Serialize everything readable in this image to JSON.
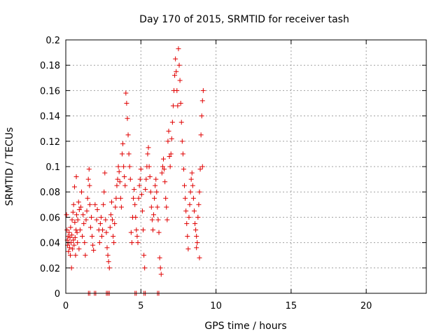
{
  "chart_data": {
    "type": "scatter",
    "title": "Day 170 of 2015, SRMTID for receiver tash",
    "xlabel": "GPS time / hours",
    "ylabel": "SRMTID / TECUs",
    "xlim": [
      0,
      24
    ],
    "ylim": [
      0,
      0.2
    ],
    "xticks": [
      0,
      5,
      10,
      15,
      20
    ],
    "xtick_labels": [
      "0",
      "5",
      "10",
      "15",
      "20"
    ],
    "yticks": [
      0,
      0.02,
      0.04,
      0.06,
      0.08,
      0.1,
      0.12,
      0.14,
      0.16,
      0.18,
      0.2
    ],
    "ytick_labels": [
      "0",
      "0.02",
      "0.04",
      "0.06",
      "0.08",
      "0.1",
      "0.12",
      "0.14",
      "0.16",
      "0.18",
      "0.2"
    ],
    "grid": true,
    "marker": "plus",
    "point_color": "#e00000",
    "series": [
      {
        "points": [
          [
            0.05,
            0.062
          ],
          [
            0.08,
            0.05
          ],
          [
            0.1,
            0.042
          ],
          [
            0.12,
            0.038
          ],
          [
            0.15,
            0.045
          ],
          [
            0.18,
            0.033
          ],
          [
            0.2,
            0.04
          ],
          [
            0.22,
            0.048
          ],
          [
            0.25,
            0.036
          ],
          [
            0.28,
            0.044
          ],
          [
            0.3,
            0.03
          ],
          [
            0.32,
            0.052
          ],
          [
            0.35,
            0.04
          ],
          [
            0.38,
            0.02
          ],
          [
            0.4,
            0.046
          ],
          [
            0.42,
            0.058
          ],
          [
            0.45,
            0.035
          ],
          [
            0.48,
            0.064
          ],
          [
            0.5,
            0.042
          ],
          [
            0.52,
            0.07
          ],
          [
            0.55,
            0.038
          ],
          [
            0.58,
            0.084
          ],
          [
            0.6,
            0.056
          ],
          [
            0.62,
            0.044
          ],
          [
            0.65,
            0.03
          ],
          [
            0.68,
            0.05
          ],
          [
            0.7,
            0.092
          ],
          [
            0.72,
            0.062
          ],
          [
            0.75,
            0.048
          ],
          [
            0.78,
            0.04
          ],
          [
            0.8,
            0.058
          ],
          [
            0.85,
            0.072
          ],
          [
            0.88,
            0.035
          ],
          [
            0.9,
            0.066
          ],
          [
            0.95,
            0.05
          ],
          [
            1.0,
            0.068
          ],
          [
            1.05,
            0.08
          ],
          [
            1.1,
            0.045
          ],
          [
            1.15,
            0.062
          ],
          [
            1.2,
            0.055
          ],
          [
            1.25,
            0.04
          ],
          [
            1.3,
            0.03
          ],
          [
            1.35,
            0.058
          ],
          [
            1.4,
            0.065
          ],
          [
            1.45,
            0.075
          ],
          [
            1.5,
            0.09
          ],
          [
            1.55,
            0.098
          ],
          [
            1.58,
            0.085
          ],
          [
            1.6,
            0.07
          ],
          [
            1.65,
            0.052
          ],
          [
            1.7,
            0.06
          ],
          [
            1.75,
            0.045
          ],
          [
            1.8,
            0.038
          ],
          [
            1.85,
            0.034
          ],
          [
            1.95,
            0.07
          ],
          [
            2.05,
            0.058
          ],
          [
            2.1,
            0.066
          ],
          [
            2.2,
            0.05
          ],
          [
            2.25,
            0.04
          ],
          [
            2.3,
            0.055
          ],
          [
            2.35,
            0.06
          ],
          [
            2.4,
            0.045
          ],
          [
            2.45,
            0.05
          ],
          [
            2.5,
            0.07
          ],
          [
            2.55,
            0.08
          ],
          [
            2.6,
            0.095
          ],
          [
            2.65,
            0.058
          ],
          [
            2.7,
            0.048
          ],
          [
            2.75,
            0.036
          ],
          [
            2.8,
            0.03
          ],
          [
            2.85,
            0.025
          ],
          [
            2.9,
            0.02
          ],
          [
            2.95,
            0.052
          ],
          [
            3.0,
            0.062
          ],
          [
            3.05,
            0.072
          ],
          [
            3.1,
            0.058
          ],
          [
            3.15,
            0.045
          ],
          [
            3.2,
            0.04
          ],
          [
            3.25,
            0.055
          ],
          [
            3.3,
            0.068
          ],
          [
            3.35,
            0.075
          ],
          [
            3.4,
            0.085
          ],
          [
            3.45,
            0.09
          ],
          [
            3.5,
            0.1
          ],
          [
            3.55,
            0.096
          ],
          [
            3.6,
            0.088
          ],
          [
            3.65,
            0.075
          ],
          [
            3.7,
            0.068
          ],
          [
            3.75,
            0.11
          ],
          [
            3.8,
            0.118
          ],
          [
            3.85,
            0.1
          ],
          [
            3.9,
            0.092
          ],
          [
            3.95,
            0.085
          ],
          [
            4.0,
            0.158
          ],
          [
            4.05,
            0.15
          ],
          [
            4.1,
            0.138
          ],
          [
            4.15,
            0.125
          ],
          [
            4.2,
            0.11
          ],
          [
            4.25,
            0.1
          ],
          [
            4.3,
            0.09
          ],
          [
            4.35,
            0.048
          ],
          [
            4.4,
            0.04
          ],
          [
            4.45,
            0.06
          ],
          [
            4.5,
            0.075
          ],
          [
            4.55,
            0.082
          ],
          [
            4.6,
            0.07
          ],
          [
            4.65,
            0.06
          ],
          [
            4.7,
            0.05
          ],
          [
            4.75,
            0.045
          ],
          [
            4.8,
            0.04
          ],
          [
            4.85,
            0.075
          ],
          [
            4.9,
            0.085
          ],
          [
            4.95,
            0.09
          ],
          [
            5.0,
            0.098
          ],
          [
            5.05,
            0.078
          ],
          [
            5.1,
            0.065
          ],
          [
            5.15,
            0.05
          ],
          [
            5.2,
            0.03
          ],
          [
            5.25,
            0.02
          ],
          [
            5.3,
            0.082
          ],
          [
            5.35,
            0.09
          ],
          [
            5.4,
            0.1
          ],
          [
            5.45,
            0.11
          ],
          [
            5.5,
            0.115
          ],
          [
            5.55,
            0.1
          ],
          [
            5.6,
            0.092
          ],
          [
            5.65,
            0.08
          ],
          [
            5.7,
            0.068
          ],
          [
            5.75,
            0.058
          ],
          [
            5.8,
            0.05
          ],
          [
            5.85,
            0.062
          ],
          [
            5.9,
            0.075
          ],
          [
            5.95,
            0.085
          ],
          [
            6.0,
            0.09
          ],
          [
            6.05,
            0.08
          ],
          [
            6.1,
            0.068
          ],
          [
            6.15,
            0.058
          ],
          [
            6.2,
            0.048
          ],
          [
            6.25,
            0.028
          ],
          [
            6.3,
            0.02
          ],
          [
            6.35,
            0.015
          ],
          [
            6.4,
            0.095
          ],
          [
            6.45,
            0.1
          ],
          [
            6.5,
            0.106
          ],
          [
            6.55,
            0.098
          ],
          [
            6.6,
            0.088
          ],
          [
            6.65,
            0.075
          ],
          [
            6.7,
            0.068
          ],
          [
            6.75,
            0.058
          ],
          [
            6.8,
            0.12
          ],
          [
            6.85,
            0.128
          ],
          [
            6.9,
            0.108
          ],
          [
            6.95,
            0.1
          ],
          [
            7.0,
            0.11
          ],
          [
            7.05,
            0.122
          ],
          [
            7.1,
            0.135
          ],
          [
            7.15,
            0.148
          ],
          [
            7.2,
            0.16
          ],
          [
            7.25,
            0.172
          ],
          [
            7.3,
            0.185
          ],
          [
            7.35,
            0.175
          ],
          [
            7.4,
            0.16
          ],
          [
            7.45,
            0.148
          ],
          [
            7.5,
            0.193
          ],
          [
            7.55,
            0.18
          ],
          [
            7.6,
            0.168
          ],
          [
            7.65,
            0.15
          ],
          [
            7.7,
            0.135
          ],
          [
            7.75,
            0.12
          ],
          [
            7.8,
            0.11
          ],
          [
            7.85,
            0.098
          ],
          [
            7.9,
            0.085
          ],
          [
            7.95,
            0.075
          ],
          [
            8.0,
            0.065
          ],
          [
            8.05,
            0.055
          ],
          [
            8.1,
            0.045
          ],
          [
            8.15,
            0.035
          ],
          [
            8.2,
            0.06
          ],
          [
            8.25,
            0.07
          ],
          [
            8.3,
            0.08
          ],
          [
            8.35,
            0.09
          ],
          [
            8.4,
            0.095
          ],
          [
            8.45,
            0.085
          ],
          [
            8.5,
            0.075
          ],
          [
            8.55,
            0.065
          ],
          [
            8.6,
            0.055
          ],
          [
            8.65,
            0.05
          ],
          [
            8.7,
            0.045
          ],
          [
            8.75,
            0.04
          ],
          [
            8.8,
            0.06
          ],
          [
            8.85,
            0.07
          ],
          [
            8.9,
            0.08
          ],
          [
            8.95,
            0.098
          ],
          [
            9.0,
            0.125
          ],
          [
            9.05,
            0.14
          ],
          [
            9.1,
            0.152
          ],
          [
            9.15,
            0.16
          ],
          [
            9.1,
            0.1
          ],
          [
            8.9,
            0.028
          ],
          [
            8.7,
            0.036
          ]
        ],
        "zero_points_x": [
          1.55,
          1.95,
          2.75,
          2.85,
          4.65,
          5.25,
          6.15
        ]
      }
    ]
  }
}
